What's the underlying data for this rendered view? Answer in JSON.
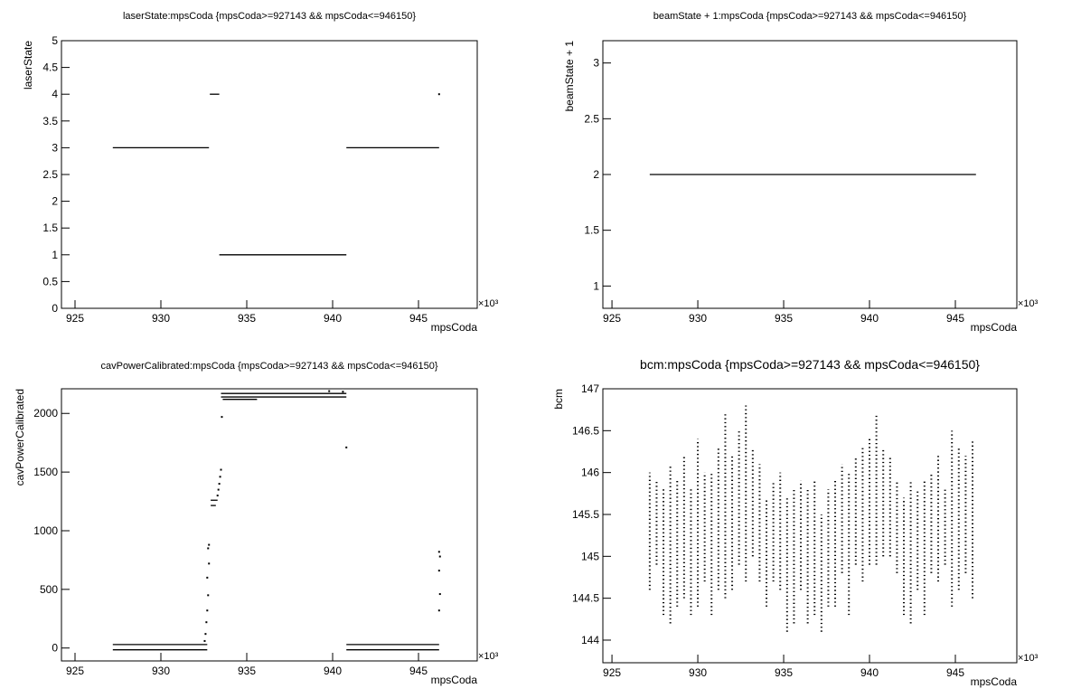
{
  "chart_data": [
    {
      "type": "line",
      "title": "laserState:mpsCoda {mpsCoda>=927143 && mpsCoda<=946150}",
      "x_label": "mpsCoda",
      "y_label": "laserState",
      "x_multiplier": "×10³",
      "color": "#000000",
      "x": [
        927.2,
        932.8,
        null,
        932.85,
        933.4,
        null,
        933.4,
        940.8,
        null,
        940.8,
        946.2,
        null,
        946.2
      ],
      "values": [
        3,
        3,
        null,
        4,
        4,
        null,
        1,
        1,
        null,
        3,
        3,
        null,
        4
      ],
      "xlim": [
        924.21,
        948.42
      ],
      "xticks": [
        925,
        930,
        935,
        940,
        945
      ],
      "ylim": [
        0,
        5
      ],
      "yticks": [
        0,
        0.5,
        1,
        1.5,
        2,
        2.5,
        3,
        3.5,
        4,
        4.5,
        5
      ]
    },
    {
      "type": "line",
      "title": "beamState + 1:mpsCoda {mpsCoda>=927143 && mpsCoda<=946150}",
      "x_label": "mpsCoda",
      "y_label": "beamState + 1",
      "x_multiplier": "×10³",
      "color": "#000000",
      "x": [
        927.2,
        946.2
      ],
      "values": [
        2,
        2
      ],
      "xlim": [
        924.47,
        948.58
      ],
      "xticks": [
        925,
        930,
        935,
        940,
        945
      ],
      "ylim": [
        0.8,
        3.2
      ],
      "yticks": [
        1,
        1.5,
        2,
        2.5,
        3
      ]
    },
    {
      "type": "line",
      "title": "cavPowerCalibrated:mpsCoda {mpsCoda>=927143 && mpsCoda<=946150}",
      "x_label": "mpsCoda",
      "y_label": "cavPowerCalibrated",
      "x_multiplier": "×10³",
      "color": "#000000",
      "x": [
        927.2,
        932.7,
        null,
        927.2,
        932.7,
        null,
        932.55,
        null,
        932.6,
        null,
        932.65,
        null,
        932.7,
        null,
        932.75,
        null,
        932.7,
        null,
        932.8,
        null,
        932.75,
        null,
        932.8,
        null,
        932.9,
        933.3,
        null,
        932.9,
        933.2,
        null,
        933.3,
        null,
        933.35,
        null,
        933.4,
        null,
        933.45,
        null,
        933.5,
        null,
        933.55,
        null,
        933.5,
        940.8,
        null,
        933.5,
        940.8,
        null,
        933.6,
        935.6,
        null,
        939.8,
        null,
        940.6,
        null,
        940.8,
        null,
        940.8,
        946.2,
        null,
        940.8,
        946.2,
        null,
        946.2,
        null,
        946.25,
        null,
        946.2,
        null,
        946.25,
        null,
        946.2
      ],
      "values": [
        30,
        30,
        null,
        -15,
        -15,
        null,
        60,
        null,
        120,
        null,
        220,
        null,
        320,
        null,
        450,
        null,
        600,
        null,
        720,
        null,
        850,
        null,
        880,
        null,
        1260,
        1260,
        null,
        1215,
        1215,
        null,
        1300,
        null,
        1350,
        null,
        1400,
        null,
        1460,
        null,
        1520,
        null,
        1970,
        null,
        2170,
        2170,
        null,
        2140,
        2140,
        null,
        2120,
        2120,
        null,
        2190,
        null,
        2185,
        null,
        1710,
        null,
        30,
        30,
        null,
        -15,
        -15,
        null,
        820,
        null,
        780,
        null,
        660,
        null,
        460,
        null,
        320
      ],
      "xlim": [
        924.21,
        948.42
      ],
      "xticks": [
        925,
        930,
        935,
        940,
        945
      ],
      "ylim": [
        -110,
        2210
      ],
      "yticks": [
        0,
        500,
        1000,
        1500,
        2000
      ]
    },
    {
      "type": "range",
      "title": "bcm:mpsCoda {mpsCoda>=927143 && mpsCoda<=946150}",
      "x_label": "mpsCoda",
      "y_label": "bcm",
      "x_multiplier": "×10³",
      "color": "#000000",
      "x": [
        927.2,
        927.6,
        928.0,
        928.4,
        928.8,
        929.2,
        929.6,
        930.0,
        930.4,
        930.8,
        931.2,
        931.6,
        932.0,
        932.4,
        932.8,
        933.2,
        933.6,
        934.0,
        934.4,
        934.8,
        935.2,
        935.6,
        936.0,
        936.4,
        936.8,
        937.2,
        937.6,
        938.0,
        938.4,
        938.8,
        939.2,
        939.6,
        940.0,
        940.4,
        940.8,
        941.2,
        941.6,
        942.0,
        942.4,
        942.8,
        943.2,
        943.6,
        944.0,
        944.4,
        944.8,
        945.2,
        945.6,
        946.0
      ],
      "low": [
        144.6,
        144.9,
        144.3,
        144.2,
        144.4,
        144.5,
        144.3,
        144.4,
        144.7,
        144.3,
        144.6,
        144.5,
        144.6,
        144.9,
        144.7,
        145.0,
        144.7,
        144.4,
        144.7,
        144.6,
        144.1,
        144.2,
        144.6,
        144.2,
        144.3,
        144.1,
        144.4,
        144.4,
        144.8,
        144.3,
        144.9,
        144.7,
        144.9,
        144.9,
        145.0,
        145.0,
        144.8,
        144.3,
        144.2,
        144.6,
        144.3,
        144.8,
        144.7,
        144.9,
        144.4,
        144.6,
        144.8,
        144.5
      ],
      "high": [
        146.0,
        145.9,
        145.8,
        146.1,
        145.9,
        146.2,
        145.8,
        146.4,
        146.0,
        146.0,
        146.3,
        146.7,
        146.2,
        146.5,
        146.8,
        146.3,
        146.1,
        145.7,
        145.9,
        146.0,
        145.7,
        145.8,
        145.9,
        145.8,
        145.9,
        145.5,
        145.8,
        145.9,
        146.1,
        146.0,
        146.2,
        146.3,
        146.4,
        146.7,
        146.3,
        146.2,
        145.9,
        145.7,
        145.9,
        145.8,
        145.9,
        146.0,
        146.2,
        145.8,
        146.5,
        146.3,
        146.2,
        146.4
      ],
      "xlim": [
        924.47,
        948.58
      ],
      "xticks": [
        925,
        930,
        935,
        940,
        945
      ],
      "ylim": [
        143.73,
        147
      ],
      "yticks": [
        144,
        144.5,
        145,
        145.5,
        146,
        146.5,
        147
      ]
    }
  ]
}
